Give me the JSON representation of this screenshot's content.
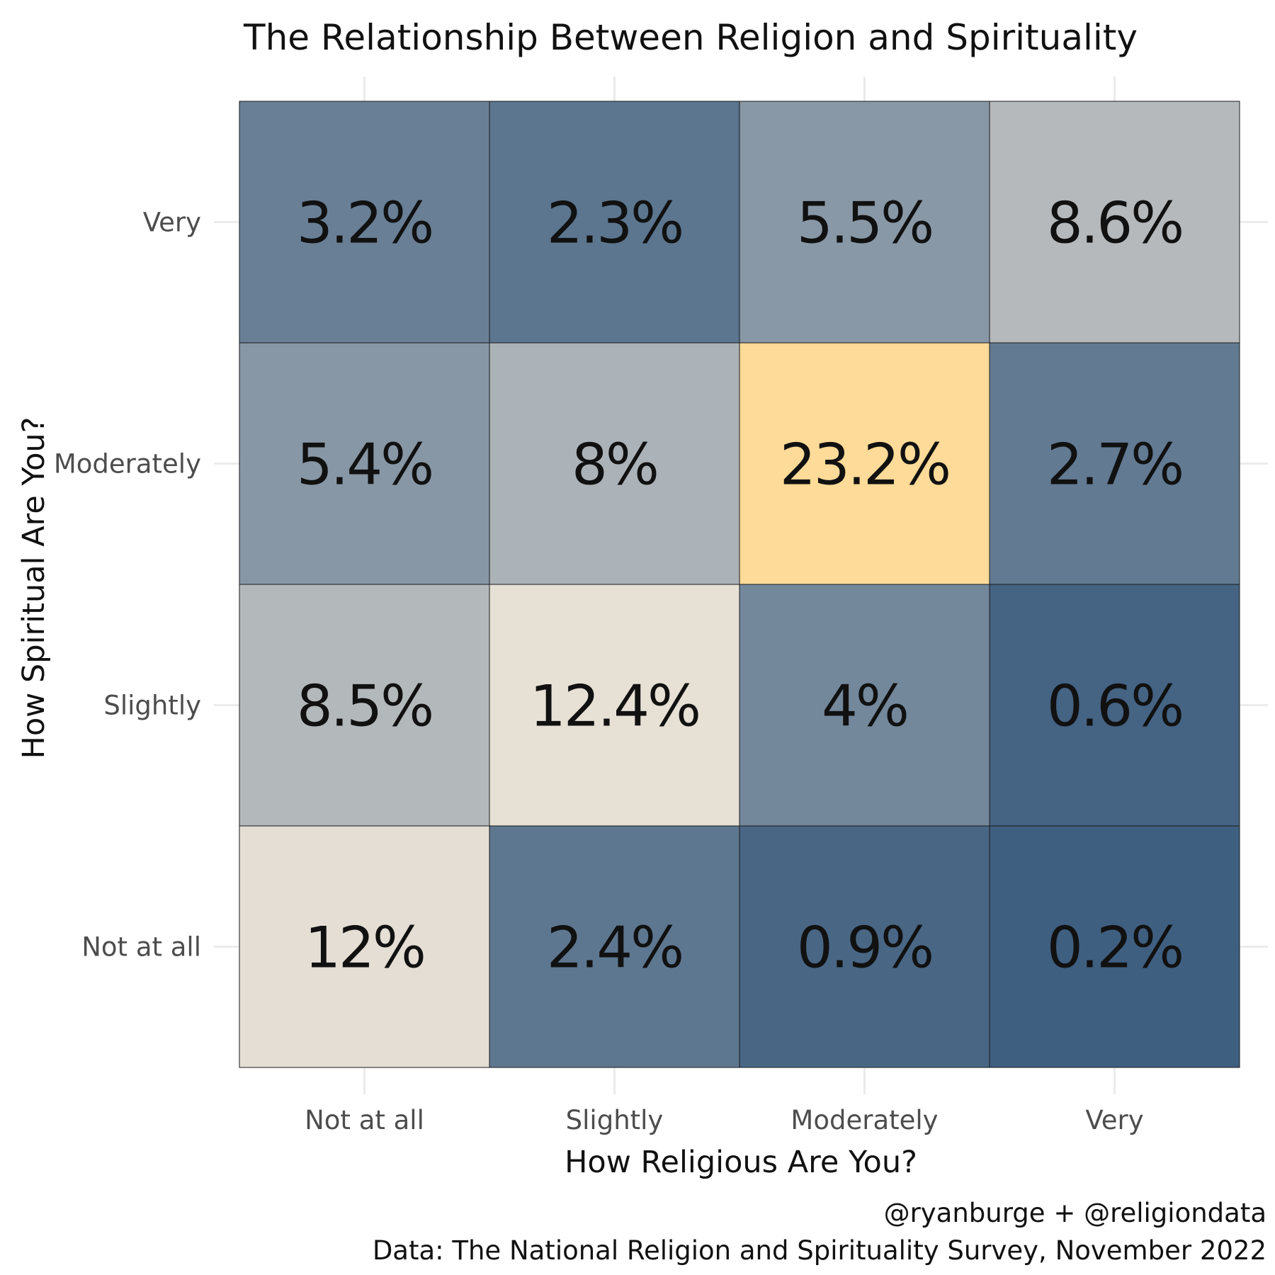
{
  "chart_data": {
    "type": "heatmap",
    "title": "The Relationship Between Religion and Spirituality",
    "xlabel": "How Religious Are You?",
    "ylabel": "How Spiritual Are You?",
    "x_categories": [
      "Not at all",
      "Slightly",
      "Moderately",
      "Very"
    ],
    "y_categories": [
      "Very",
      "Moderately",
      "Slightly",
      "Not at all"
    ],
    "values": [
      [
        3.2,
        2.3,
        5.5,
        8.6
      ],
      [
        5.4,
        8,
        23.2,
        2.7
      ],
      [
        8.5,
        12.4,
        4,
        0.6
      ],
      [
        12,
        2.4,
        0.9,
        0.2
      ]
    ],
    "labels": [
      [
        "3.2%",
        "2.3%",
        "5.5%",
        "8.6%"
      ],
      [
        "5.4%",
        "8%",
        "23.2%",
        "2.7%"
      ],
      [
        "8.5%",
        "12.4%",
        "4%",
        "0.6%"
      ],
      [
        "12%",
        "2.4%",
        "0.9%",
        "0.2%"
      ]
    ],
    "color_scale": {
      "low": "#3f5f80",
      "mid": "#e7e0d6",
      "high": "#fedb98"
    },
    "caption_lines": [
      "@ryanburge + @religiondata",
      "Data: The National Religion and Spirituality Survey, November 2022"
    ],
    "grid": true,
    "legend": "none"
  }
}
